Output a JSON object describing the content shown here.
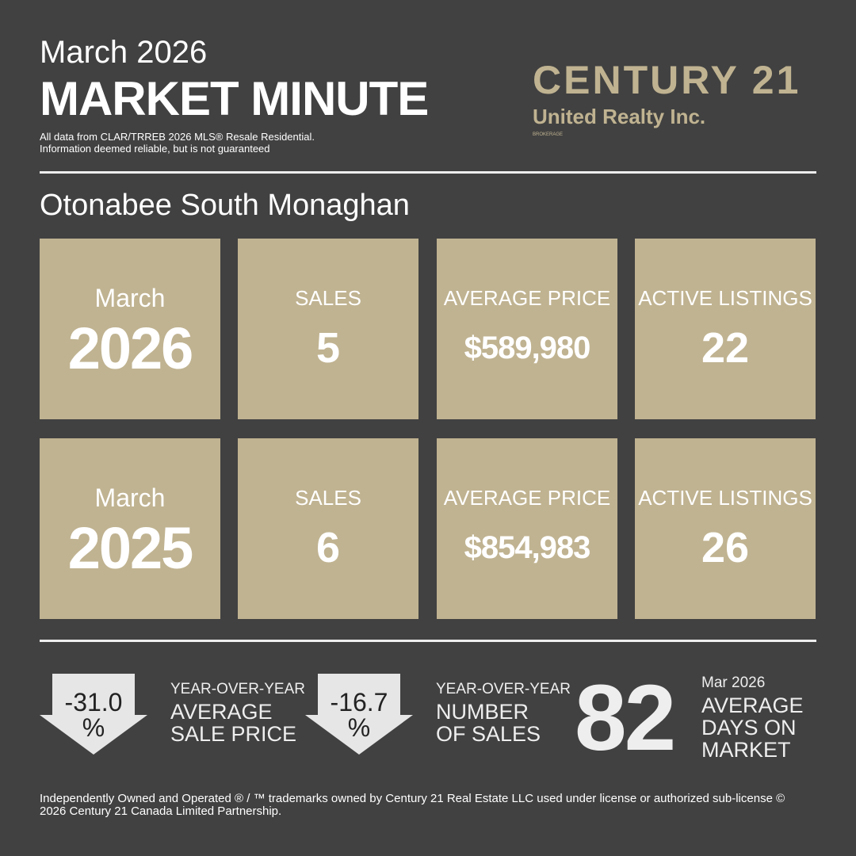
{
  "header": {
    "month_year": "March 2026",
    "title": "MARKET MINUTE",
    "disclaimer": [
      "All data from CLAR/TRREB 2026 MLS® Resale  Residential.",
      "Information deemed reliable, but is not guaranteed"
    ]
  },
  "logo": {
    "brand": "CENTURY 21",
    "office": "United Realty Inc.",
    "tag": "BROKERAGE"
  },
  "area": "Otonabee South Monaghan",
  "rows": [
    {
      "month": "March",
      "year": "2026",
      "stats": [
        {
          "label": "SALES",
          "value": "5"
        },
        {
          "label": "AVERAGE PRICE",
          "value": "$589,980"
        },
        {
          "label": "ACTIVE LISTINGS",
          "value": "22"
        }
      ]
    },
    {
      "month": "March",
      "year": "2025",
      "stats": [
        {
          "label": "SALES",
          "value": "6"
        },
        {
          "label": "AVERAGE PRICE",
          "value": "$854,983"
        },
        {
          "label": "ACTIVE LISTINGS",
          "value": "26"
        }
      ]
    }
  ],
  "summary": [
    {
      "value": "-31.0",
      "unit": "%",
      "lines": [
        "YEAR-OVER-YEAR",
        "AVERAGE",
        "SALE PRICE"
      ]
    },
    {
      "value": "-16.7",
      "unit": "%",
      "lines": [
        "YEAR-OVER-YEAR",
        "NUMBER",
        "OF SALES"
      ]
    }
  ],
  "days": {
    "value": "82",
    "period": "Mar 2026",
    "lines": [
      "AVERAGE",
      "DAYS ON",
      "MARKET"
    ]
  },
  "footer": "Independently Owned and Operated ® / ™ trademarks owned by Century 21 Real Estate LLC used under license or authorized sub-license © 2026 Century 21 Canada Limited Partnership."
}
